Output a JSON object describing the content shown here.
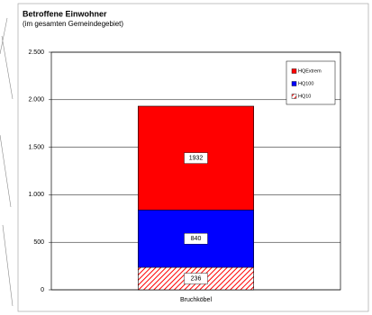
{
  "chart_data": {
    "type": "bar",
    "overlap": true,
    "title": "Betroffene Einwohner",
    "subtitle": "(im gesamten Gemeindegebiet)",
    "categories": [
      "Bruchköbel"
    ],
    "series": [
      {
        "name": "HQExtrem",
        "color": "#ff0000",
        "values": [
          1932
        ]
      },
      {
        "name": "HQ100",
        "color": "#0000ff",
        "values": [
          840
        ]
      },
      {
        "name": "HQ10",
        "color": "#ff0000",
        "hatch": true,
        "values": [
          236
        ]
      }
    ],
    "ylim": [
      0,
      2500
    ],
    "yticks": [
      0,
      500,
      {
        "value": 1000,
        "label": "1.000"
      },
      {
        "value": 1500,
        "label": "1.500"
      },
      {
        "value": 2000,
        "label": "2.000"
      },
      {
        "value": 2500,
        "label": "2.500"
      }
    ],
    "grid": true,
    "legend": "top-right"
  }
}
